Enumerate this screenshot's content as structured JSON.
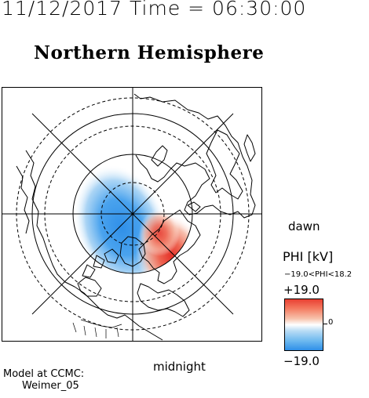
{
  "timestamp": "11/12/2017 Time = 06:30:00",
  "hemisphere_title": "Northern Hemisphere",
  "labels": {
    "dawn": "dawn",
    "midnight": "midnight",
    "model_line1": "Model at CCMC:",
    "model_line2": "Weimer_05"
  },
  "colorbar": {
    "title": "PHI [kV]",
    "range_text": "−19.0<PHI<18.2",
    "max_label": "+19.0",
    "min_label": "−19.0",
    "zero_label": "0",
    "colors": {
      "positive": "#e83f32",
      "negative": "#2f8fe8",
      "zero": "#ffffff"
    }
  },
  "map": {
    "projection": "polar stereographic, north pole centered",
    "latitude_circles_drawn": true,
    "meridians_drawn": true,
    "negative_cell": "dusk side (blue)",
    "positive_cell": "dawn side (red)"
  }
}
